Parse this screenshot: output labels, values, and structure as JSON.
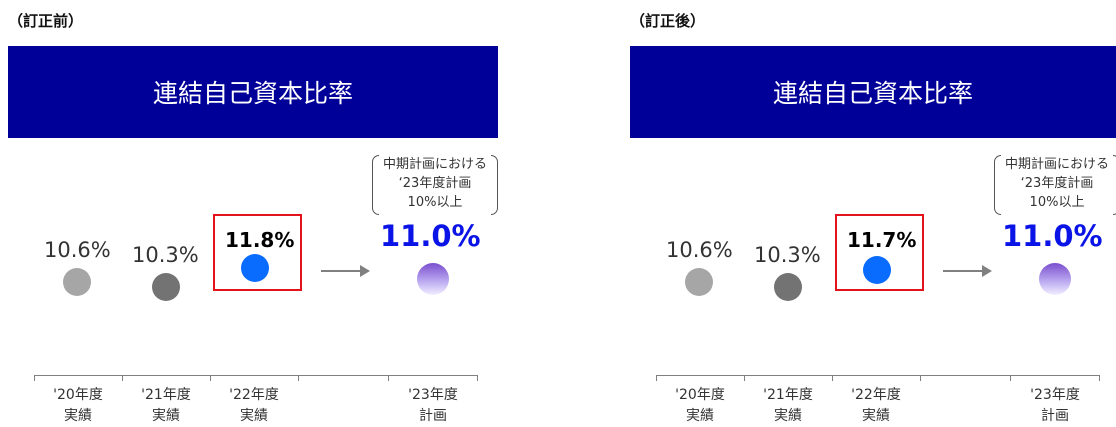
{
  "chart_data": [
    {
      "type": "scatter",
      "panel_label": "（訂正前）",
      "title": "連結自己資本比率",
      "categories": [
        "'20年度\n実績",
        "'21年度\n実績",
        "'22年度\n実績",
        "'23年度\n計画"
      ],
      "values": [
        10.6,
        10.3,
        11.8,
        11.0
      ],
      "value_labels": [
        "10.6%",
        "10.3%",
        "11.8%",
        "11.0%"
      ],
      "highlighted_index": 2,
      "annotation": [
        "中期計画における",
        "‘23年度計画",
        "10%以上"
      ],
      "colors": [
        "#a6a6a6",
        "#808080",
        "#0a6cff",
        "#8f6bd8"
      ],
      "target_color": "#0a14e6",
      "highlight_color": "#e3131b"
    },
    {
      "type": "scatter",
      "panel_label": "（訂正後）",
      "title": "連結自己資本比率",
      "categories": [
        "'20年度\n実績",
        "'21年度\n実績",
        "'22年度\n実績",
        "'23年度\n計画"
      ],
      "values": [
        10.6,
        10.3,
        11.7,
        11.0
      ],
      "value_labels": [
        "10.6%",
        "10.3%",
        "11.7%",
        "11.0%"
      ],
      "highlighted_index": 2,
      "annotation": [
        "中期計画における",
        "‘23年度計画",
        "10%以上"
      ],
      "colors": [
        "#a6a6a6",
        "#808080",
        "#0a6cff",
        "#8f6bd8"
      ],
      "target_color": "#0a14e6",
      "highlight_color": "#e3131b"
    }
  ]
}
